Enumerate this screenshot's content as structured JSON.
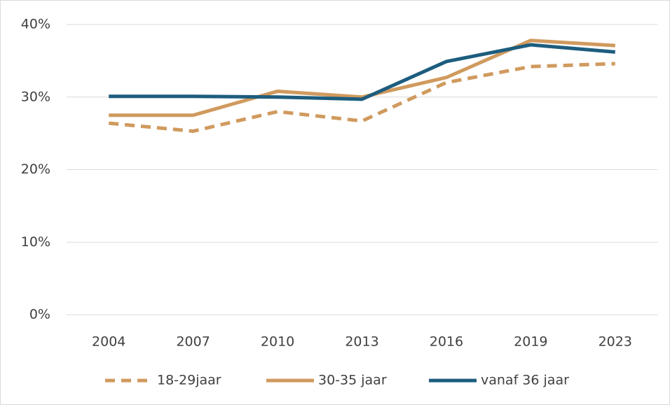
{
  "chart_data": {
    "type": "line",
    "categories": [
      "2004",
      "2007",
      "2010",
      "2013",
      "2016",
      "2019",
      "2023"
    ],
    "series": [
      {
        "name": "18-29jaar",
        "color": "#d09a5e",
        "style": "dashed",
        "values": [
          26.4,
          25.3,
          28.0,
          26.7,
          32.0,
          34.2,
          34.6
        ]
      },
      {
        "name": "30-35 jaar",
        "color": "#d09a5e",
        "style": "solid",
        "values": [
          27.5,
          27.5,
          30.8,
          30.0,
          32.7,
          37.8,
          37.1
        ]
      },
      {
        "name": "vanaf 36 jaar",
        "color": "#1d5d7e",
        "style": "solid",
        "values": [
          30.1,
          30.1,
          30.0,
          29.7,
          34.9,
          37.2,
          36.2
        ]
      }
    ],
    "ylim": [
      0,
      40
    ],
    "yticks": [
      {
        "value": 0,
        "label": "0%"
      },
      {
        "value": 10,
        "label": "10%"
      },
      {
        "value": 20,
        "label": "20%"
      },
      {
        "value": 30,
        "label": "30%"
      },
      {
        "value": 40,
        "label": "40%"
      }
    ],
    "grid": true,
    "legend": "bottom"
  }
}
